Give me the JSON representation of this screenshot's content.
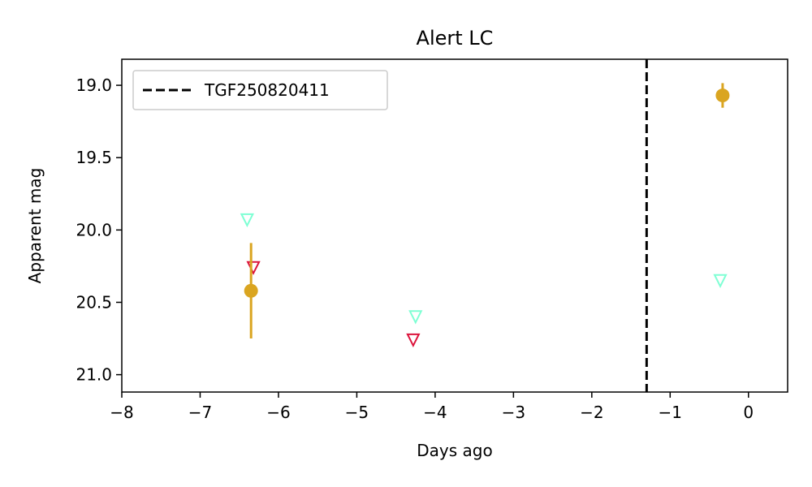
{
  "chart_data": {
    "type": "scatter",
    "title": "Alert LC",
    "xlabel": "Days ago",
    "ylabel": "Apparent mag",
    "xlim": [
      -8,
      0.5
    ],
    "ylim": [
      21.12,
      18.82
    ],
    "y_inverted": true,
    "x_ticks": [
      -8,
      -7,
      -6,
      -5,
      -4,
      -3,
      -2,
      -1,
      0
    ],
    "x_tick_labels": [
      "−8",
      "−7",
      "−6",
      "−5",
      "−4",
      "−3",
      "−2",
      "−1",
      "0"
    ],
    "y_ticks": [
      19.0,
      19.5,
      20.0,
      20.5,
      21.0
    ],
    "y_tick_labels": [
      "19.0",
      "19.5",
      "20.0",
      "20.5",
      "21.0"
    ],
    "grid": false,
    "legend": {
      "position": "top-left",
      "entries": [
        "TGF250820411"
      ]
    },
    "vline": {
      "x": -1.3,
      "label": "TGF250820411",
      "color": "#000000",
      "style": "dashed"
    },
    "detections": [
      {
        "x": -6.35,
        "y": 20.42,
        "err": 0.33,
        "color": "#DAA520"
      },
      {
        "x": -0.33,
        "y": 19.07,
        "err": 0.085,
        "color": "#DAA520"
      }
    ],
    "upper_limits": [
      {
        "x": -6.4,
        "y": 19.93,
        "color": "#7FFFD4"
      },
      {
        "x": -6.32,
        "y": 20.26,
        "color": "#DC143C"
      },
      {
        "x": -4.25,
        "y": 20.6,
        "color": "#7FFFD4"
      },
      {
        "x": -4.28,
        "y": 20.76,
        "color": "#DC143C"
      },
      {
        "x": -0.36,
        "y": 20.35,
        "color": "#7FFFD4"
      }
    ]
  }
}
